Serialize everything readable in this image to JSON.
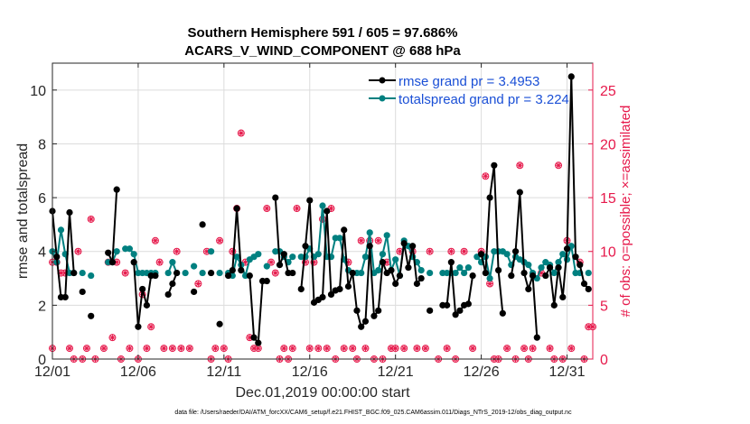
{
  "chart_data": {
    "type": "line",
    "title": "Southern Hemisphere 591 / 605 = 97.686%",
    "subtitle": "ACARS_V_WIND_COMPONENT @ 688 hPa",
    "xlabel": "Dec.01,2019 00:00:00 start",
    "ylabel": "rmse and totalspread",
    "y2label": "# of obs: o=possible; ×=assimilated",
    "footnote": "data file: /Users/raeder/DAI/ATM_forcXX/CAM6_setup/f.e21.FHIST_BGC.f09_025.CAM6assim.011/Diags_NTrS_2019-12/obs_diag_output.nc",
    "xlim": [
      0,
      31.5
    ],
    "ylim": [
      0,
      11
    ],
    "y2lim": [
      0,
      27.5
    ],
    "xticks": [
      0,
      5,
      10,
      15,
      20,
      25,
      30
    ],
    "xtick_labels": [
      "12/01",
      "12/06",
      "12/11",
      "12/16",
      "12/21",
      "12/26",
      "12/31"
    ],
    "yticks": [
      0,
      2,
      4,
      6,
      8,
      10
    ],
    "y2ticks": [
      0,
      5,
      10,
      15,
      20,
      25
    ],
    "grid": true,
    "legend_position": "top-right",
    "colors": {
      "rmse": "#000000",
      "spread": "#008080",
      "obs": "#e6194b"
    },
    "series": [
      {
        "name": "rmse grand pr = 3.4953",
        "key": "rmse",
        "points": [
          [
            0.0,
            5.5
          ],
          [
            0.25,
            3.8
          ],
          [
            0.5,
            2.3
          ],
          [
            0.75,
            2.3
          ],
          [
            1.0,
            5.45
          ],
          [
            1.25,
            3.2
          ],
          [
            1.75,
            2.5
          ],
          [
            2.25,
            1.6
          ],
          [
            3.25,
            3.95
          ],
          [
            3.5,
            3.6
          ],
          [
            3.75,
            6.3
          ],
          [
            4.75,
            3.6
          ],
          [
            5.0,
            1.2
          ],
          [
            5.25,
            2.6
          ],
          [
            5.5,
            2.0
          ],
          [
            5.75,
            3.1
          ],
          [
            6.0,
            3.1
          ],
          [
            6.75,
            2.4
          ],
          [
            7.0,
            2.8
          ],
          [
            7.25,
            3.2
          ],
          [
            8.25,
            2.5
          ],
          [
            8.75,
            5.0
          ],
          [
            9.25,
            3.2
          ],
          [
            9.75,
            1.3
          ],
          [
            10.25,
            3.1
          ],
          [
            10.5,
            3.3
          ],
          [
            10.75,
            5.6
          ],
          [
            11.0,
            3.3
          ],
          [
            11.5,
            3.1
          ],
          [
            11.75,
            0.8
          ],
          [
            12.0,
            0.6
          ],
          [
            12.25,
            2.9
          ],
          [
            12.5,
            2.9
          ],
          [
            13.0,
            6.0
          ],
          [
            13.25,
            3.5
          ],
          [
            13.5,
            3.9
          ],
          [
            13.75,
            3.2
          ],
          [
            14.0,
            3.2
          ],
          [
            14.5,
            2.6
          ],
          [
            14.75,
            4.2
          ],
          [
            15.0,
            5.9
          ],
          [
            15.25,
            2.1
          ],
          [
            15.5,
            2.2
          ],
          [
            15.75,
            2.3
          ],
          [
            16.0,
            5.5
          ],
          [
            16.25,
            2.4
          ],
          [
            16.5,
            2.55
          ],
          [
            16.75,
            2.6
          ],
          [
            17.0,
            4.8
          ],
          [
            17.25,
            2.7
          ],
          [
            17.5,
            3.2
          ],
          [
            17.75,
            1.8
          ],
          [
            18.0,
            1.2
          ],
          [
            18.25,
            1.4
          ],
          [
            18.5,
            4.2
          ],
          [
            18.75,
            1.6
          ],
          [
            19.0,
            1.8
          ],
          [
            19.25,
            3.6
          ],
          [
            19.5,
            3.2
          ],
          [
            19.75,
            3.3
          ],
          [
            20.0,
            2.8
          ],
          [
            20.25,
            3.1
          ],
          [
            20.5,
            4.3
          ],
          [
            20.75,
            3.4
          ],
          [
            21.0,
            4.2
          ],
          [
            21.25,
            2.8
          ],
          [
            21.5,
            3.0
          ],
          [
            22.0,
            1.8
          ],
          [
            22.75,
            2.0
          ],
          [
            23.0,
            2.0
          ],
          [
            23.25,
            3.6
          ],
          [
            23.5,
            1.65
          ],
          [
            23.75,
            1.8
          ],
          [
            24.0,
            2.0
          ],
          [
            24.25,
            2.05
          ],
          [
            24.5,
            3.1
          ],
          [
            25.0,
            3.9
          ],
          [
            25.25,
            3.2
          ],
          [
            25.5,
            6.0
          ],
          [
            25.75,
            7.2
          ],
          [
            26.0,
            3.3
          ],
          [
            26.25,
            1.7
          ],
          [
            26.75,
            3.1
          ],
          [
            27.0,
            4.0
          ],
          [
            27.25,
            6.2
          ],
          [
            27.5,
            3.2
          ],
          [
            27.75,
            2.6
          ],
          [
            28.0,
            3.1
          ],
          [
            28.25,
            0.8
          ],
          [
            28.75,
            3.1
          ],
          [
            29.0,
            3.4
          ],
          [
            29.25,
            2.0
          ],
          [
            29.5,
            3.4
          ],
          [
            29.75,
            2.3
          ],
          [
            30.0,
            4.1
          ],
          [
            30.25,
            10.5
          ],
          [
            30.5,
            3.8
          ],
          [
            30.75,
            3.5
          ],
          [
            31.0,
            2.8
          ],
          [
            31.25,
            2.6
          ]
        ]
      },
      {
        "name": "totalspread grand pr = 3.224",
        "key": "spread",
        "points": [
          [
            0.0,
            4.0
          ],
          [
            0.25,
            3.6
          ],
          [
            0.5,
            4.8
          ],
          [
            0.75,
            3.9
          ],
          [
            1.0,
            3.2
          ],
          [
            1.25,
            3.2
          ],
          [
            1.75,
            3.2
          ],
          [
            2.25,
            3.1
          ],
          [
            3.25,
            3.6
          ],
          [
            3.5,
            3.6
          ],
          [
            3.75,
            4.0
          ],
          [
            4.25,
            4.1
          ],
          [
            4.5,
            4.1
          ],
          [
            4.75,
            3.9
          ],
          [
            5.0,
            3.2
          ],
          [
            5.25,
            3.2
          ],
          [
            5.5,
            3.2
          ],
          [
            5.75,
            3.2
          ],
          [
            6.0,
            3.2
          ],
          [
            6.75,
            3.2
          ],
          [
            7.0,
            3.6
          ],
          [
            7.25,
            3.2
          ],
          [
            7.75,
            3.2
          ],
          [
            8.25,
            3.45
          ],
          [
            8.75,
            3.2
          ],
          [
            9.25,
            4.0
          ],
          [
            9.75,
            3.2
          ],
          [
            10.25,
            3.2
          ],
          [
            10.5,
            3.1
          ],
          [
            10.75,
            3.8
          ],
          [
            11.0,
            3.5
          ],
          [
            11.25,
            3.1
          ],
          [
            11.5,
            3.7
          ],
          [
            11.75,
            3.8
          ],
          [
            12.0,
            3.9
          ],
          [
            12.5,
            3.45
          ],
          [
            13.0,
            4.0
          ],
          [
            13.25,
            4.0
          ],
          [
            13.5,
            3.8
          ],
          [
            13.75,
            3.6
          ],
          [
            14.0,
            3.8
          ],
          [
            14.5,
            3.8
          ],
          [
            14.75,
            3.8
          ],
          [
            15.0,
            4.1
          ],
          [
            15.25,
            3.8
          ],
          [
            15.5,
            3.9
          ],
          [
            15.75,
            5.7
          ],
          [
            16.0,
            3.8
          ],
          [
            16.25,
            3.8
          ],
          [
            16.5,
            4.5
          ],
          [
            16.75,
            4.5
          ],
          [
            17.0,
            3.7
          ],
          [
            17.25,
            3.3
          ],
          [
            17.5,
            3.2
          ],
          [
            17.75,
            3.2
          ],
          [
            18.0,
            3.2
          ],
          [
            18.25,
            3.8
          ],
          [
            18.5,
            4.7
          ],
          [
            18.75,
            3.2
          ],
          [
            19.0,
            3.3
          ],
          [
            19.25,
            3.9
          ],
          [
            19.5,
            4.6
          ],
          [
            19.75,
            3.3
          ],
          [
            20.0,
            3.7
          ],
          [
            20.25,
            3.1
          ],
          [
            20.5,
            4.4
          ],
          [
            20.75,
            4.2
          ],
          [
            21.0,
            3.8
          ],
          [
            21.25,
            3.6
          ],
          [
            21.5,
            3.3
          ],
          [
            22.0,
            3.2
          ],
          [
            22.75,
            3.2
          ],
          [
            23.0,
            3.2
          ],
          [
            23.25,
            3.2
          ],
          [
            23.5,
            3.2
          ],
          [
            23.75,
            3.4
          ],
          [
            24.0,
            3.2
          ],
          [
            24.25,
            3.4
          ],
          [
            24.75,
            3.8
          ],
          [
            25.0,
            3.6
          ],
          [
            25.25,
            3.8
          ],
          [
            25.5,
            3.0
          ],
          [
            25.75,
            4.0
          ],
          [
            26.0,
            4.0
          ],
          [
            26.25,
            4.0
          ],
          [
            26.5,
            3.9
          ],
          [
            26.75,
            3.5
          ],
          [
            27.0,
            3.8
          ],
          [
            27.25,
            3.7
          ],
          [
            27.5,
            3.6
          ],
          [
            27.75,
            3.5
          ],
          [
            28.0,
            3.2
          ],
          [
            28.25,
            3.0
          ],
          [
            28.5,
            3.4
          ],
          [
            28.75,
            3.6
          ],
          [
            29.0,
            3.5
          ],
          [
            29.25,
            3.2
          ],
          [
            29.5,
            3.6
          ],
          [
            29.75,
            3.9
          ],
          [
            30.0,
            3.7
          ],
          [
            30.25,
            4.2
          ],
          [
            30.5,
            3.2
          ],
          [
            30.75,
            3.2
          ],
          [
            31.25,
            3.2
          ]
        ]
      }
    ],
    "obs_points": [
      [
        0.0,
        1
      ],
      [
        0.0,
        9
      ],
      [
        0.25,
        9
      ],
      [
        0.5,
        8
      ],
      [
        0.75,
        8
      ],
      [
        1.0,
        1
      ],
      [
        1.25,
        0
      ],
      [
        1.5,
        10
      ],
      [
        1.75,
        0
      ],
      [
        2.0,
        1
      ],
      [
        2.25,
        13
      ],
      [
        2.5,
        0
      ],
      [
        3.0,
        1
      ],
      [
        3.25,
        9
      ],
      [
        3.5,
        2
      ],
      [
        3.75,
        9
      ],
      [
        4.0,
        0
      ],
      [
        4.25,
        8
      ],
      [
        4.5,
        1
      ],
      [
        5.0,
        0
      ],
      [
        5.25,
        6
      ],
      [
        5.5,
        1
      ],
      [
        5.75,
        3
      ],
      [
        6.0,
        11
      ],
      [
        6.25,
        9
      ],
      [
        6.5,
        1
      ],
      [
        7.0,
        1
      ],
      [
        7.25,
        10
      ],
      [
        7.5,
        1
      ],
      [
        8.0,
        1
      ],
      [
        8.5,
        7
      ],
      [
        9.0,
        10
      ],
      [
        9.25,
        0
      ],
      [
        9.5,
        1
      ],
      [
        9.75,
        11
      ],
      [
        10.0,
        1
      ],
      [
        10.25,
        0
      ],
      [
        10.5,
        10
      ],
      [
        10.75,
        14
      ],
      [
        11.0,
        21
      ],
      [
        11.25,
        9
      ],
      [
        11.5,
        2
      ],
      [
        11.75,
        1
      ],
      [
        12.0,
        1
      ],
      [
        12.5,
        14
      ],
      [
        12.75,
        9
      ],
      [
        13.0,
        8
      ],
      [
        13.25,
        0
      ],
      [
        13.5,
        1
      ],
      [
        13.75,
        0
      ],
      [
        14.0,
        1
      ],
      [
        14.25,
        14
      ],
      [
        14.75,
        9
      ],
      [
        15.0,
        1
      ],
      [
        15.25,
        9
      ],
      [
        15.5,
        1
      ],
      [
        15.75,
        13
      ],
      [
        16.0,
        1
      ],
      [
        16.25,
        14
      ],
      [
        16.5,
        0
      ],
      [
        17.0,
        1
      ],
      [
        17.25,
        9
      ],
      [
        17.5,
        1
      ],
      [
        17.75,
        0
      ],
      [
        18.0,
        11
      ],
      [
        18.25,
        1
      ],
      [
        18.5,
        11
      ],
      [
        18.75,
        0
      ],
      [
        19.0,
        11
      ],
      [
        19.25,
        0
      ],
      [
        19.5,
        9
      ],
      [
        19.75,
        1
      ],
      [
        20.0,
        1
      ],
      [
        20.25,
        10
      ],
      [
        20.5,
        1
      ],
      [
        21.0,
        10
      ],
      [
        21.25,
        1
      ],
      [
        21.75,
        1
      ],
      [
        22.0,
        10
      ],
      [
        22.5,
        0
      ],
      [
        23.0,
        1
      ],
      [
        23.25,
        10
      ],
      [
        23.5,
        0
      ],
      [
        24.0,
        10
      ],
      [
        24.5,
        1
      ],
      [
        25.0,
        10
      ],
      [
        25.25,
        17
      ],
      [
        25.5,
        7
      ],
      [
        25.75,
        0
      ],
      [
        26.0,
        0
      ],
      [
        26.5,
        1
      ],
      [
        27.0,
        0
      ],
      [
        27.25,
        18
      ],
      [
        27.5,
        1
      ],
      [
        27.75,
        0
      ],
      [
        28.0,
        1
      ],
      [
        28.5,
        8
      ],
      [
        29.0,
        1
      ],
      [
        29.25,
        0
      ],
      [
        29.5,
        18
      ],
      [
        29.75,
        0
      ],
      [
        30.0,
        11
      ],
      [
        30.25,
        1
      ],
      [
        30.75,
        9
      ],
      [
        31.0,
        0
      ],
      [
        31.25,
        3
      ],
      [
        31.5,
        3
      ]
    ]
  }
}
